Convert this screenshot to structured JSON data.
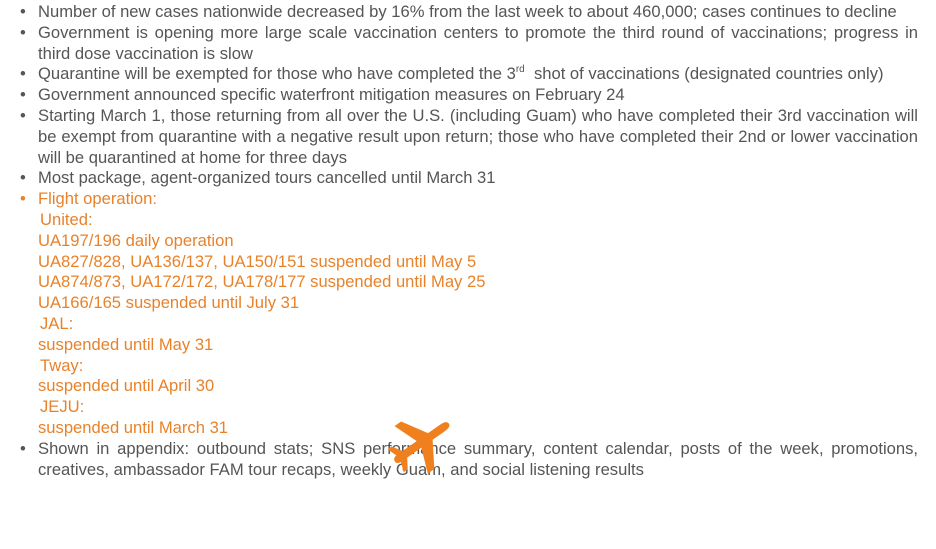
{
  "bullets": [
    "Number of new cases nationwide decreased by 16% from the last week to about 460,000; cases continues to decline",
    "Government is opening more large scale vaccination centers to promote the third round of vaccinations; progress in third dose vaccination is slow",
    {
      "text": "Quarantine will be exempted for those who have completed the 3",
      "sup": "rd",
      "rest": "  shot of vaccinations (designated countries only)"
    },
    "Government announced specific waterfront mitigation measures on February 24",
    "Starting March 1, those returning from all over the U.S. (including Guam) who have completed their 3rd vaccination will be exempt from quarantine with a negative result upon return; those who have completed their 2nd or lower vaccination will be quarantined at home for three days",
    "Most package, agent-organized tours cancelled until March 31"
  ],
  "flight": {
    "label": "Flight operation:",
    "airlines": [
      {
        "name": "United:",
        "lines": [
          "UA197/196 daily operation",
          "UA827/828, UA136/137, UA150/151 suspended until May 5",
          "UA874/873, UA172/172, UA178/177 suspended until May 25",
          "UA166/165 suspended until July 31"
        ]
      },
      {
        "name": "JAL:",
        "lines": [
          "suspended until May 31"
        ]
      },
      {
        "name": "Tway:",
        "lines": [
          "suspended until April 30"
        ]
      },
      {
        "name": "JEJU:",
        "lines": [
          "suspended until March 31"
        ]
      }
    ]
  },
  "appendix": "Shown in appendix: outbound stats; SNS performance summary, content calendar, posts of the week, promotions, creatives, ambassador FAM tour recaps, weekly Guam, and social listening results"
}
